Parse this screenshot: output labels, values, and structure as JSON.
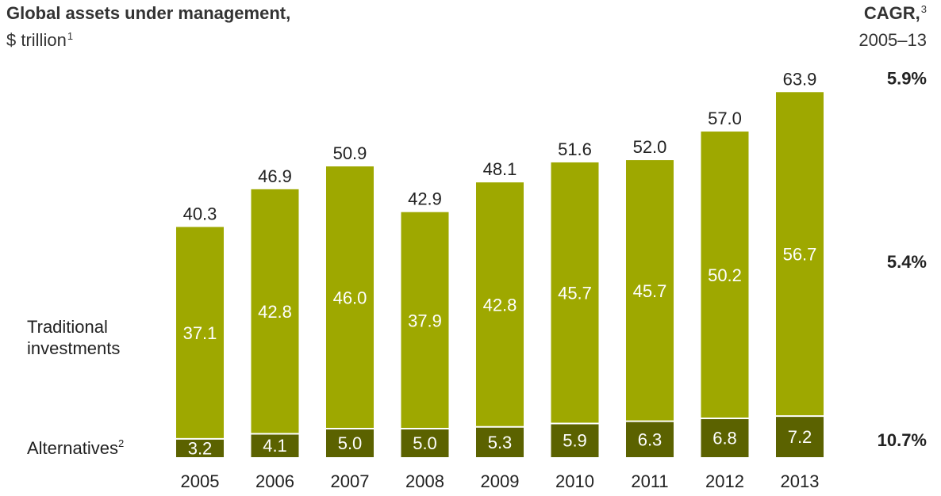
{
  "header": {
    "title": "Global assets under management,",
    "unit": "$ trillion",
    "unit_footnote": "1",
    "cagr_title": "CAGR,",
    "cagr_footnote": "3",
    "cagr_period": "2005–13"
  },
  "colors": {
    "traditional": "#9ea800",
    "alternatives": "#5b6200",
    "text": "#222222",
    "bar_label": "#ffffff"
  },
  "chart_data": {
    "type": "bar",
    "stacked": true,
    "categories": [
      "2005",
      "2006",
      "2007",
      "2008",
      "2009",
      "2010",
      "2011",
      "2012",
      "2013"
    ],
    "series": [
      {
        "name": "Alternatives",
        "footnote": "2",
        "values": [
          3.2,
          4.1,
          5.0,
          5.0,
          5.3,
          5.9,
          6.3,
          6.8,
          7.2
        ]
      },
      {
        "name": "Traditional investments",
        "values": [
          37.1,
          42.8,
          46.0,
          37.9,
          42.8,
          45.7,
          45.7,
          50.2,
          56.7
        ]
      }
    ],
    "totals": [
      40.3,
      46.9,
      50.9,
      42.9,
      48.1,
      51.6,
      52.0,
      57.0,
      63.9
    ],
    "value_labels": {
      "alternatives": [
        "3.2",
        "4.1",
        "5.0",
        "5.0",
        "5.3",
        "5.9",
        "6.3",
        "6.8",
        "7.2"
      ],
      "traditional": [
        "37.1",
        "42.8",
        "46.0",
        "37.9",
        "42.8",
        "45.7",
        "45.7",
        "50.2",
        "56.7"
      ],
      "totals": [
        "40.3",
        "46.9",
        "50.9",
        "42.9",
        "48.1",
        "51.6",
        "52.0",
        "57.0",
        "63.9"
      ]
    },
    "cagr": {
      "total": "5.9%",
      "traditional": "5.4%",
      "alternatives": "10.7%"
    },
    "ylim": [
      0,
      63.9
    ],
    "grid": false,
    "legend": "left (series labels beside bars)"
  }
}
